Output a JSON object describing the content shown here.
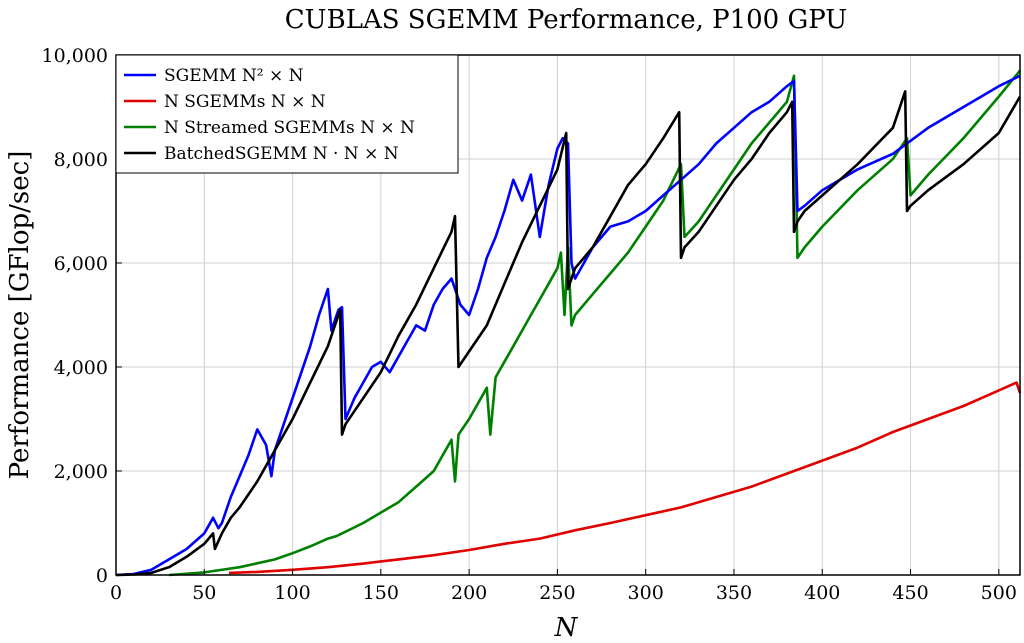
{
  "chart_data": {
    "type": "line",
    "title": "CUBLAS SGEMM Performance, P100 GPU",
    "xlabel": "N",
    "ylabel": "Performance [GFlop/sec]",
    "xlim": [
      0,
      512
    ],
    "ylim": [
      0,
      10000
    ],
    "xticks": [
      0,
      50,
      100,
      150,
      200,
      250,
      300,
      350,
      400,
      450,
      500
    ],
    "xtick_labels": [
      "0",
      "50",
      "100",
      "150",
      "200",
      "250",
      "300",
      "350",
      "400",
      "450",
      "500"
    ],
    "yticks": [
      0,
      2000,
      4000,
      6000,
      8000,
      10000
    ],
    "ytick_labels": [
      "0",
      "2,000",
      "4,000",
      "6,000",
      "8,000",
      "10,000"
    ],
    "grid": true,
    "legend_position": "top-left",
    "series": [
      {
        "name": "SGEMM N² × N",
        "color": "#0000ff",
        "x": [
          0,
          10,
          20,
          30,
          40,
          50,
          55,
          58,
          60,
          65,
          70,
          75,
          80,
          85,
          88,
          90,
          95,
          100,
          105,
          110,
          115,
          120,
          122,
          124,
          126,
          128,
          130,
          135,
          140,
          145,
          150,
          155,
          160,
          165,
          170,
          175,
          180,
          185,
          190,
          195,
          200,
          205,
          210,
          215,
          220,
          225,
          230,
          235,
          240,
          245,
          250,
          253,
          256,
          258,
          260,
          265,
          270,
          280,
          290,
          300,
          310,
          320,
          330,
          340,
          350,
          360,
          370,
          380,
          384,
          386,
          390,
          400,
          420,
          440,
          460,
          480,
          500,
          512
        ],
        "y": [
          0,
          20,
          100,
          300,
          500,
          800,
          1100,
          900,
          1000,
          1500,
          1900,
          2300,
          2800,
          2500,
          1900,
          2400,
          2900,
          3400,
          3900,
          4400,
          5000,
          5500,
          4700,
          4900,
          5100,
          5150,
          3000,
          3400,
          3700,
          4000,
          4100,
          3900,
          4200,
          4500,
          4800,
          4700,
          5200,
          5500,
          5700,
          5200,
          5000,
          5500,
          6100,
          6500,
          7000,
          7600,
          7200,
          7700,
          6500,
          7500,
          8200,
          8400,
          8300,
          6000,
          5700,
          6000,
          6300,
          6700,
          6800,
          7000,
          7300,
          7600,
          7900,
          8300,
          8600,
          8900,
          9100,
          9400,
          9500,
          7000,
          7100,
          7400,
          7800,
          8100,
          8600,
          9000,
          9400,
          9600
        ]
      },
      {
        "name": "N SGEMMs N × N",
        "color": "#e00000",
        "x": [
          64,
          80,
          100,
          120,
          140,
          160,
          180,
          200,
          220,
          240,
          260,
          280,
          300,
          320,
          340,
          360,
          380,
          400,
          420,
          440,
          460,
          480,
          500,
          510,
          512
        ],
        "y": [
          40,
          60,
          100,
          150,
          220,
          300,
          380,
          480,
          600,
          700,
          860,
          1000,
          1150,
          1300,
          1500,
          1700,
          1950,
          2200,
          2450,
          2750,
          3000,
          3250,
          3550,
          3700,
          3500
        ]
      },
      {
        "name": "N Streamed SGEMMs N × N",
        "color": "#008000",
        "x": [
          30,
          50,
          70,
          90,
          100,
          110,
          120,
          125,
          128,
          140,
          150,
          160,
          170,
          180,
          185,
          190,
          192,
          194,
          200,
          205,
          210,
          212,
          215,
          220,
          225,
          230,
          235,
          240,
          245,
          250,
          252,
          254,
          256,
          258,
          260,
          270,
          280,
          290,
          300,
          310,
          320,
          322,
          330,
          340,
          350,
          360,
          370,
          380,
          384,
          386,
          390,
          400,
          420,
          440,
          448,
          450,
          460,
          480,
          500,
          512
        ],
        "y": [
          0,
          50,
          150,
          300,
          420,
          550,
          700,
          750,
          800,
          1000,
          1200,
          1400,
          1700,
          2000,
          2300,
          2600,
          1800,
          2700,
          3000,
          3300,
          3600,
          2700,
          3800,
          4100,
          4400,
          4700,
          5000,
          5300,
          5600,
          5900,
          6200,
          5000,
          6300,
          4800,
          5000,
          5400,
          5800,
          6200,
          6700,
          7200,
          7900,
          6500,
          6800,
          7300,
          7800,
          8300,
          8700,
          9100,
          9600,
          6100,
          6300,
          6700,
          7400,
          8000,
          8400,
          7300,
          7700,
          8400,
          9200,
          9700
        ]
      },
      {
        "name": "BatchedSGEMM N · N × N",
        "color": "#000000",
        "x": [
          0,
          10,
          20,
          30,
          40,
          50,
          55,
          56,
          58,
          60,
          65,
          70,
          80,
          90,
          100,
          110,
          120,
          127,
          128,
          130,
          140,
          150,
          160,
          170,
          180,
          190,
          192,
          194,
          200,
          210,
          220,
          230,
          240,
          250,
          255,
          256,
          258,
          260,
          270,
          280,
          290,
          300,
          310,
          319,
          320,
          322,
          330,
          340,
          350,
          360,
          370,
          380,
          383,
          384,
          386,
          390,
          400,
          420,
          440,
          447,
          448,
          450,
          460,
          480,
          500,
          512
        ],
        "y": [
          0,
          10,
          40,
          150,
          350,
          600,
          800,
          500,
          650,
          800,
          1100,
          1300,
          1800,
          2400,
          3000,
          3700,
          4400,
          5100,
          2700,
          2900,
          3400,
          3900,
          4600,
          5200,
          5900,
          6600,
          6900,
          4000,
          4300,
          4800,
          5600,
          6400,
          7100,
          7800,
          8500,
          5500,
          5700,
          5900,
          6300,
          6900,
          7500,
          7900,
          8400,
          8900,
          6100,
          6300,
          6600,
          7100,
          7600,
          8000,
          8500,
          8900,
          9100,
          6600,
          6800,
          7000,
          7300,
          7900,
          8600,
          9300,
          7000,
          7100,
          7400,
          7900,
          8500,
          9200
        ]
      }
    ]
  }
}
